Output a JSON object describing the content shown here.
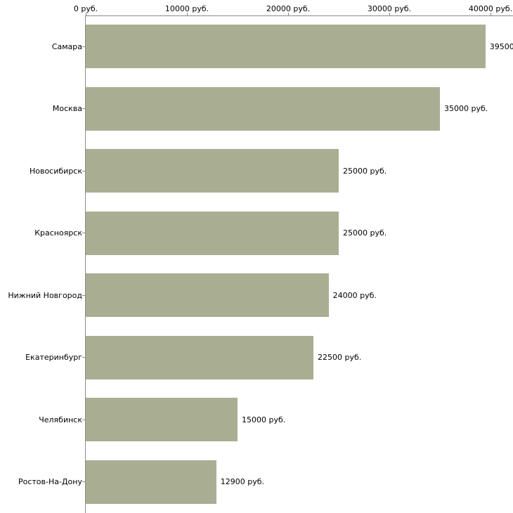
{
  "chart_data": {
    "type": "bar",
    "orientation": "horizontal",
    "title": "",
    "xlabel": "",
    "ylabel": "",
    "xlim": [
      0,
      40000
    ],
    "grid": false,
    "legend": "none",
    "bar_color": "#a9ae93",
    "axis_color": "#8a8a8a",
    "categories": [
      "Самара",
      "Москва",
      "Новосибирск",
      "Красноярск",
      "Нижний Новгород",
      "Екатеринбург",
      "Челябинск",
      "Ростов-На-Дону"
    ],
    "values": [
      39500,
      35000,
      25000,
      25000,
      24000,
      22500,
      15000,
      12900
    ],
    "value_labels": [
      "39500",
      "35000 руб.",
      "25000 руб.",
      "25000 руб.",
      "24000 руб.",
      "22500 руб.",
      "15000 руб.",
      "12900 руб."
    ],
    "x_ticks": [
      0,
      10000,
      20000,
      30000,
      40000
    ],
    "x_tick_labels": [
      "0 руб.",
      "10000 руб.",
      "20000 руб.",
      "30000 руб.",
      "40000 руб."
    ]
  }
}
